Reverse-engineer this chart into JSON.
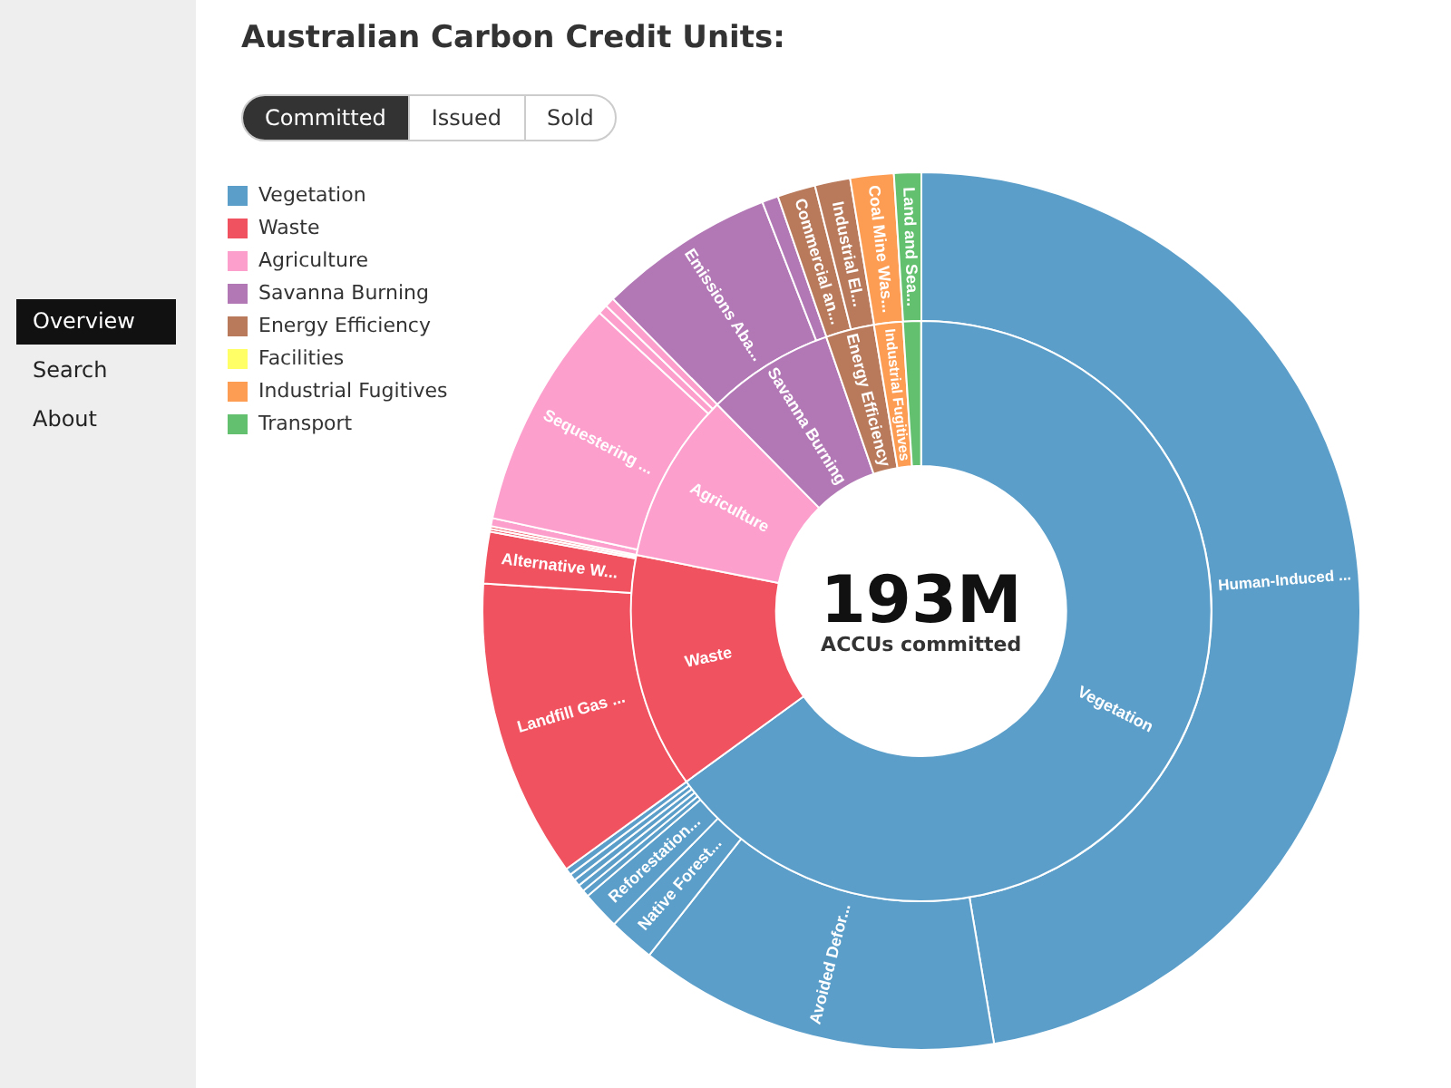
{
  "chart_data": [
    {
      "type": "donut",
      "title": "Australian Carbon Credit Units:",
      "legend": "left",
      "annotations": [
        "193M",
        "ACCUs committed",
        "Committed",
        "Issued",
        "Sold",
        "Overview",
        "Search",
        "About"
      ],
      "categories": [
        "Vegetation",
        "Waste",
        "Agriculture",
        "Savanna Burning",
        "Energy Efficiency",
        "Facilities",
        "Industrial Fugitives",
        "Transport"
      ],
      "values": [
        65.0,
        13.1,
        9.5,
        7.1,
        2.7,
        0,
        1.6,
        1.0
      ],
      "colors": [
        "#5b9ec9",
        "#f0525f",
        "#fc9fcc",
        "#b278b5",
        "#b97a5c",
        "#ffff66",
        "#fd9d54",
        "#63c06f"
      ]
    },
    {
      "type": "donut",
      "categories": [
        "Human-Induced ...",
        "Avoided Defor...",
        "Native Forest...",
        "Reforestation...",
        null,
        null,
        null,
        null,
        null,
        "Landfill Gas ...",
        "Alternative W...",
        null,
        null,
        null,
        "Sequestering ...",
        null,
        null,
        "Emissions Aba...",
        null,
        "Commercial an...",
        "Industrial El...",
        "Coal Mine Was...",
        "Land and Sea..."
      ],
      "values": [
        47.35,
        13.3,
        1.7,
        1.4,
        0.25,
        0.25,
        0.25,
        0.25,
        0.25,
        11.0,
        1.9,
        0.1,
        0.1,
        0.3,
        8.5,
        0.35,
        0.35,
        6.5,
        0.6,
        1.4,
        1.3,
        1.6,
        1.0
      ],
      "colors": [
        "#5b9ec9",
        "#5b9ec9",
        "#5b9ec9",
        "#5b9ec9",
        "#5b9ec9",
        "#5b9ec9",
        "#5b9ec9",
        "#5b9ec9",
        "#5b9ec9",
        "#f0525f",
        "#f0525f",
        "#f0525f",
        "#f0525f",
        "#fc9fcc",
        "#fc9fcc",
        "#fc9fcc",
        "#fc9fcc",
        "#b278b5",
        "#b278b5",
        "#b97a5c",
        "#b97a5c",
        "#fd9d54",
        "#63c06f"
      ]
    }
  ]
}
